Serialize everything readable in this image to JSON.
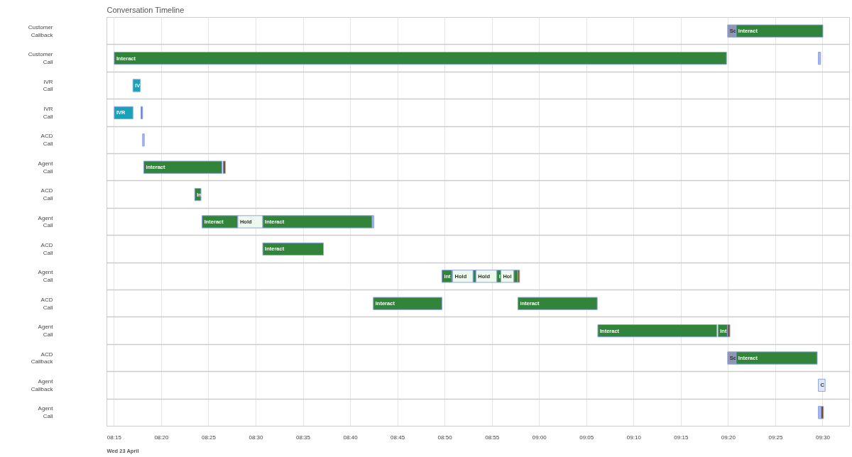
{
  "chart_data": {
    "type": "bar",
    "orientation": "horizontal",
    "title": "Conversation Timeline",
    "categories": [
      "Customer\nCallback",
      "Customer\nCall",
      "IVR\nCall",
      "IVR\nCall",
      "ACD\nCall",
      "Agent\nCall",
      "ACD\nCall",
      "Agent\nCall",
      "ACD\nCall",
      "Agent\nCall",
      "ACD\nCall",
      "Agent\nCall",
      "ACD\nCallback",
      "Agent\nCallback",
      "Agent\nCall"
    ],
    "xlim": [
      8.237,
      9.547
    ],
    "xticks": [
      {
        "value": 8.25,
        "label": "08:15"
      },
      {
        "value": 8.3333,
        "label": "08:20"
      },
      {
        "value": 8.4167,
        "label": "08:25"
      },
      {
        "value": 8.5,
        "label": "08:30"
      },
      {
        "value": 8.5833,
        "label": "08:35"
      },
      {
        "value": 8.6667,
        "label": "08:40"
      },
      {
        "value": 8.75,
        "label": "08:45"
      },
      {
        "value": 8.8333,
        "label": "08:50"
      },
      {
        "value": 8.9167,
        "label": "08:55"
      },
      {
        "value": 9.0,
        "label": "09:00"
      },
      {
        "value": 9.0833,
        "label": "09:05"
      },
      {
        "value": 9.1667,
        "label": "09:10"
      },
      {
        "value": 9.25,
        "label": "09:15"
      },
      {
        "value": 9.3333,
        "label": "09:20"
      },
      {
        "value": 9.4167,
        "label": "09:25"
      },
      {
        "value": 9.5,
        "label": "09:30"
      }
    ],
    "grid": true,
    "annotations": [
      "Wed 23 April"
    ],
    "series": [
      {
        "base": [
          9.332,
          8.25,
          8.283,
          8.25,
          8.3,
          8.302,
          8.392,
          8.405,
          8.512,
          8.828,
          8.707,
          9.103,
          9.332,
          9.492,
          9.492
        ],
        "values": [
          0.015,
          1.08,
          0.013,
          0.033,
          0.003,
          0.138,
          0.011,
          0.063,
          0.107,
          0.018,
          0.121,
          0.21,
          0.015,
          0.012,
          0.005
        ],
        "colors": [
          "#8e96b0",
          "#31843a",
          "#17a2b8",
          "#17a2b8",
          "#a9b4f0",
          "#31843a",
          "#31843a",
          "#31843a",
          "#31843a",
          "#31843a",
          "#31843a",
          "#31843a",
          "#8e96b0",
          "#dde6fb",
          "#a9b4f0"
        ],
        "value_labels": [
          "Sc",
          "Interact",
          "IV",
          "IVR",
          null,
          "Interact",
          "In",
          "Interact",
          "Interact",
          "Int",
          "Interact",
          "Interact",
          "Sc",
          "C",
          null
        ]
      },
      {
        "base": [
          9.347,
          9.492,
          null,
          8.297,
          null,
          8.442,
          null,
          8.468,
          null,
          8.847,
          8.962,
          9.315,
          9.347,
          null,
          9.497
        ],
        "values": [
          0.153,
          0.004,
          null,
          0.003,
          null,
          0.004,
          null,
          0.044,
          null,
          0.036,
          0.14,
          0.017,
          0.143,
          null,
          0.004
        ],
        "colors": [
          "#31843a",
          "#a9b4f0",
          null,
          "#4a90d0",
          null,
          "#7a4a1e",
          null,
          "#eef9ee",
          null,
          "#eef9ee",
          "#31843a",
          "#31843a",
          "#31843a",
          null,
          "#7a4a1e"
        ],
        "value_labels": [
          "Interact",
          null,
          null,
          null,
          null,
          null,
          null,
          "Hold",
          null,
          "Hold",
          "Interact",
          "Int",
          "Interact",
          null,
          null
        ]
      },
      {
        "base": [
          null,
          null,
          null,
          null,
          null,
          null,
          null,
          8.512,
          null,
          8.883,
          null,
          9.332,
          null,
          null,
          null
        ],
        "values": [
          null,
          null,
          null,
          null,
          null,
          null,
          null,
          0.193,
          null,
          0.006,
          null,
          0.004,
          null,
          null,
          null
        ],
        "colors": [
          null,
          null,
          null,
          null,
          null,
          null,
          null,
          "#31843a",
          null,
          "#31843a",
          null,
          "#7a4a1e",
          null,
          null,
          null
        ],
        "value_labels": [
          null,
          null,
          null,
          null,
          null,
          null,
          null,
          "Interact",
          null,
          null,
          null,
          null,
          null,
          null,
          null
        ]
      },
      {
        "base": [
          null,
          null,
          null,
          null,
          null,
          null,
          null,
          8.705,
          null,
          8.888,
          null,
          null,
          null,
          null,
          null
        ],
        "values": [
          null,
          null,
          null,
          null,
          null,
          null,
          null,
          0.003,
          null,
          0.037,
          null,
          null,
          null,
          null,
          null
        ],
        "colors": [
          null,
          null,
          null,
          null,
          null,
          null,
          null,
          "#a9b4f0",
          null,
          "#eef9ee",
          null,
          null,
          null,
          null,
          null
        ],
        "value_labels": [
          null,
          null,
          null,
          null,
          null,
          null,
          null,
          null,
          null,
          "Hold",
          null,
          null,
          null,
          null,
          null
        ]
      },
      {
        "base": [
          null,
          null,
          null,
          null,
          null,
          null,
          null,
          null,
          null,
          8.925,
          null,
          null,
          null,
          null,
          null
        ],
        "values": [
          null,
          null,
          null,
          null,
          null,
          null,
          null,
          null,
          null,
          0.007,
          null,
          null,
          null,
          null,
          null
        ],
        "colors": [
          null,
          null,
          null,
          null,
          null,
          null,
          null,
          null,
          null,
          "#31843a",
          null,
          null,
          null,
          null,
          null
        ],
        "value_labels": [
          null,
          null,
          null,
          null,
          null,
          null,
          null,
          null,
          null,
          "I",
          null,
          null,
          null,
          null,
          null
        ]
      },
      {
        "base": [
          null,
          null,
          null,
          null,
          null,
          null,
          null,
          null,
          null,
          8.932,
          null,
          null,
          null,
          null,
          null
        ],
        "values": [
          null,
          null,
          null,
          null,
          null,
          null,
          null,
          null,
          null,
          0.023,
          null,
          null,
          null,
          null,
          null
        ],
        "colors": [
          null,
          null,
          null,
          null,
          null,
          null,
          null,
          null,
          null,
          "#eef9ee",
          null,
          null,
          null,
          null,
          null
        ],
        "value_labels": [
          null,
          null,
          null,
          null,
          null,
          null,
          null,
          null,
          null,
          "Hol",
          null,
          null,
          null,
          null,
          null
        ]
      },
      {
        "base": [
          null,
          null,
          null,
          null,
          null,
          null,
          null,
          null,
          null,
          8.955,
          null,
          null,
          null,
          null,
          null
        ],
        "values": [
          null,
          null,
          null,
          null,
          null,
          null,
          null,
          null,
          null,
          0.007,
          null,
          null,
          null,
          null,
          null
        ],
        "colors": [
          null,
          null,
          null,
          null,
          null,
          null,
          null,
          null,
          null,
          "#31843a",
          null,
          null,
          null,
          null,
          null
        ],
        "value_labels": [
          null,
          null,
          null,
          null,
          null,
          null,
          null,
          null,
          null,
          null,
          null,
          null,
          null,
          null,
          null
        ]
      },
      {
        "base": [
          null,
          null,
          null,
          null,
          null,
          null,
          null,
          null,
          null,
          8.962,
          null,
          null,
          null,
          null,
          null
        ],
        "values": [
          null,
          null,
          null,
          null,
          null,
          null,
          null,
          null,
          null,
          0.003,
          null,
          null,
          null,
          null,
          null
        ],
        "colors": [
          null,
          null,
          null,
          null,
          null,
          null,
          null,
          null,
          null,
          "#7a4a1e",
          null,
          null,
          null,
          null,
          null
        ],
        "value_labels": [
          null,
          null,
          null,
          null,
          null,
          null,
          null,
          null,
          null,
          null,
          null,
          null,
          null,
          null,
          null
        ]
      }
    ]
  }
}
